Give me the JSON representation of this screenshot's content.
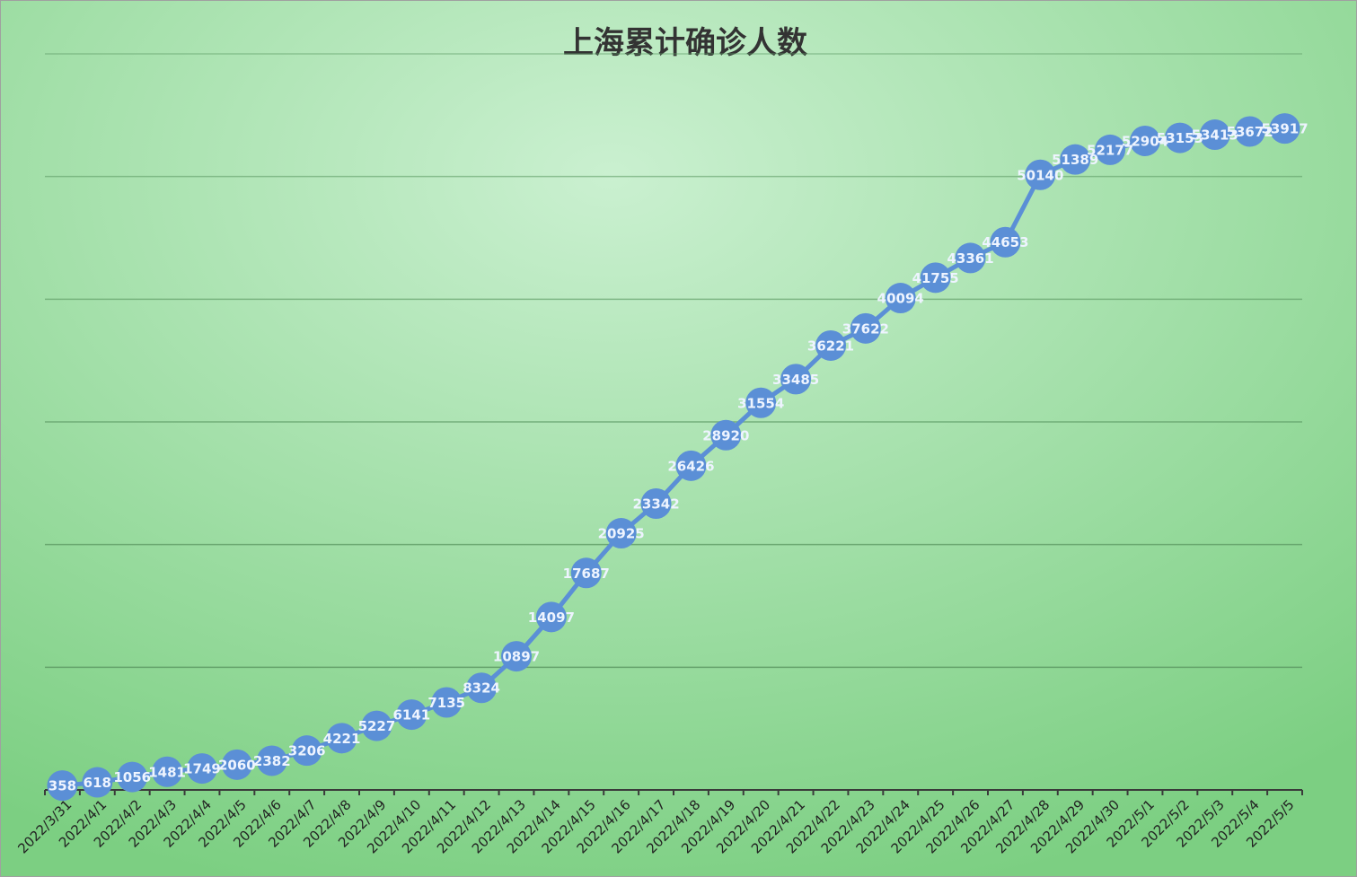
{
  "chart_data": {
    "type": "line",
    "title": "上海累计确诊人数",
    "categories": [
      "2022/3/31",
      "2022/4/1",
      "2022/4/2",
      "2022/4/3",
      "2022/4/4",
      "2022/4/5",
      "2022/4/6",
      "2022/4/7",
      "2022/4/8",
      "2022/4/9",
      "2022/4/10",
      "2022/4/11",
      "2022/4/12",
      "2022/4/13",
      "2022/4/14",
      "2022/4/15",
      "2022/4/16",
      "2022/4/17",
      "2022/4/18",
      "2022/4/19",
      "2022/4/20",
      "2022/4/21",
      "2022/4/22",
      "2022/4/23",
      "2022/4/24",
      "2022/4/25",
      "2022/4/26",
      "2022/4/27",
      "2022/4/28",
      "2022/4/29",
      "2022/4/30",
      "2022/5/1",
      "2022/5/2",
      "2022/5/3",
      "2022/5/4",
      "2022/5/5"
    ],
    "values": [
      358,
      618,
      1056,
      1481,
      1749,
      2060,
      2382,
      3206,
      4221,
      5227,
      6141,
      7135,
      8324,
      10897,
      14097,
      17687,
      20925,
      23342,
      26426,
      28920,
      31554,
      33485,
      36221,
      37622,
      40094,
      41755,
      43361,
      44653,
      50140,
      51389,
      52177,
      52904,
      53153,
      53413,
      53672,
      53917
    ],
    "color": "#5b8fd6",
    "ylim": [
      0,
      60000
    ],
    "yticks": [
      0,
      10000,
      20000,
      30000,
      40000,
      50000,
      60000
    ],
    "grid": true
  }
}
